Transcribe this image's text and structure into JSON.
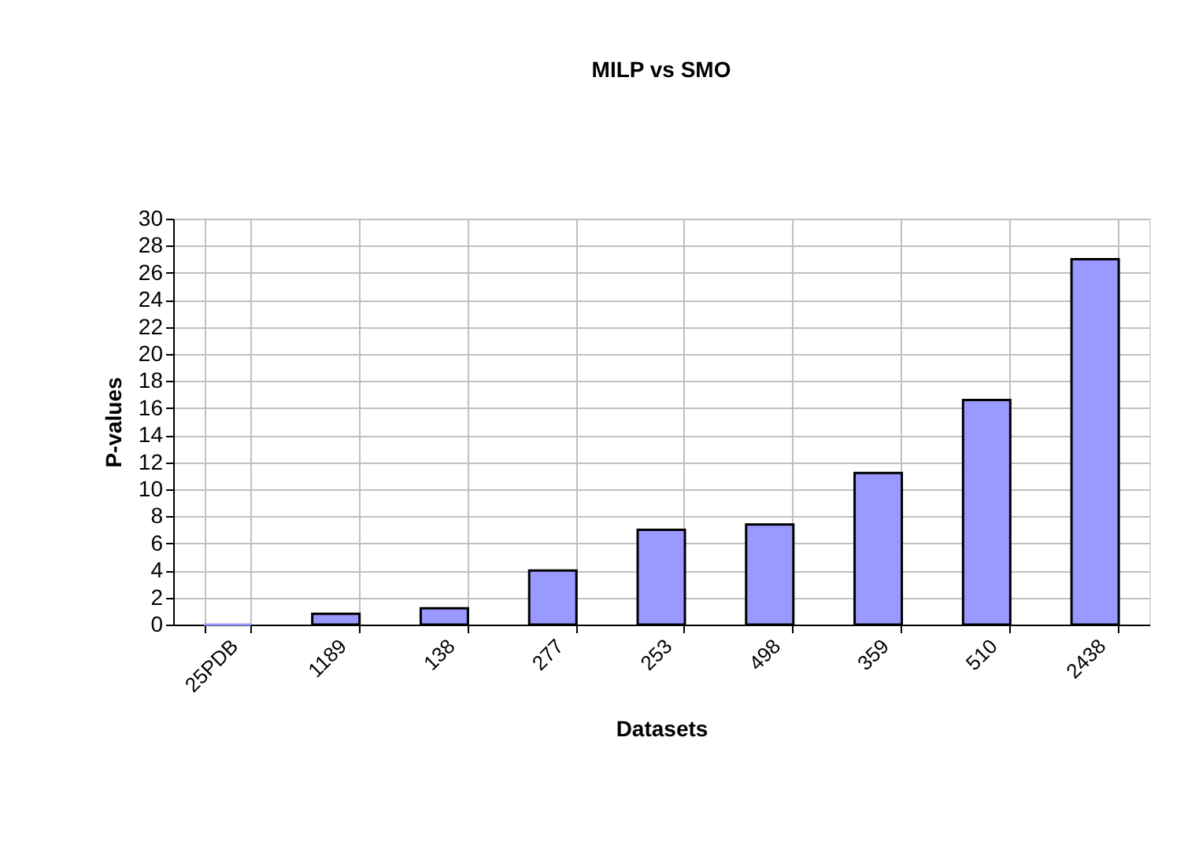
{
  "chart_data": {
    "type": "bar",
    "title": "MILP vs SMO",
    "xlabel": "Datasets",
    "ylabel": "P-values",
    "categories": [
      "25PDB",
      "1189",
      "138",
      "277",
      "253",
      "498",
      "359",
      "510",
      "2438"
    ],
    "values": [
      0,
      0.8,
      1.2,
      4.0,
      7.0,
      7.4,
      11.2,
      16.6,
      27.0
    ],
    "color": "#9999ff",
    "ylim": [
      0,
      30
    ],
    "yticks": [
      0,
      2,
      4,
      6,
      8,
      10,
      12,
      14,
      16,
      18,
      20,
      22,
      24,
      26,
      28,
      30
    ],
    "grid": true
  }
}
